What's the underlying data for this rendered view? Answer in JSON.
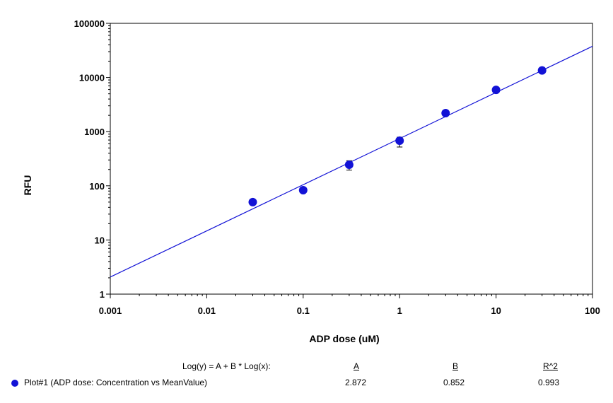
{
  "chart_data": {
    "type": "scatter",
    "xlabel": "ADP dose (uM)",
    "ylabel": "RFU",
    "xscale": "log",
    "yscale": "log",
    "xlim": [
      0.001,
      100
    ],
    "ylim": [
      1,
      100000
    ],
    "x_ticks": [
      "0.001",
      "0.01",
      "0.1",
      "1",
      "10",
      "100"
    ],
    "y_ticks": [
      "1",
      "10",
      "100",
      "1000",
      "10000",
      "100000"
    ],
    "grid": false,
    "series": [
      {
        "color": "#1212d6",
        "points": [
          {
            "x": 0.03,
            "y": 50
          },
          {
            "x": 0.1,
            "y": 83
          },
          {
            "x": 0.3,
            "y": 245,
            "err_low": 195,
            "err_high": 290
          },
          {
            "x": 1,
            "y": 680,
            "err_low": 520,
            "err_high": 790
          },
          {
            "x": 3,
            "y": 2200
          },
          {
            "x": 10,
            "y": 5900
          },
          {
            "x": 30,
            "y": 13500
          }
        ]
      }
    ],
    "fit": {
      "equation": "Log(y) = A + B * Log(x):",
      "A": 2.872,
      "B": 0.852,
      "R2": 0.993,
      "color": "#1212d6"
    }
  },
  "legend": {
    "equation_label": "Log(y) = A + B * Log(x):",
    "col_a": "A",
    "col_b": "B",
    "col_r2": "R^2",
    "series_label": "Plot#1 (ADP dose: Concentration vs MeanValue)",
    "a_value": "2.872",
    "b_value": "0.852",
    "r2_value": "0.993",
    "marker_color": "#1212d6"
  }
}
